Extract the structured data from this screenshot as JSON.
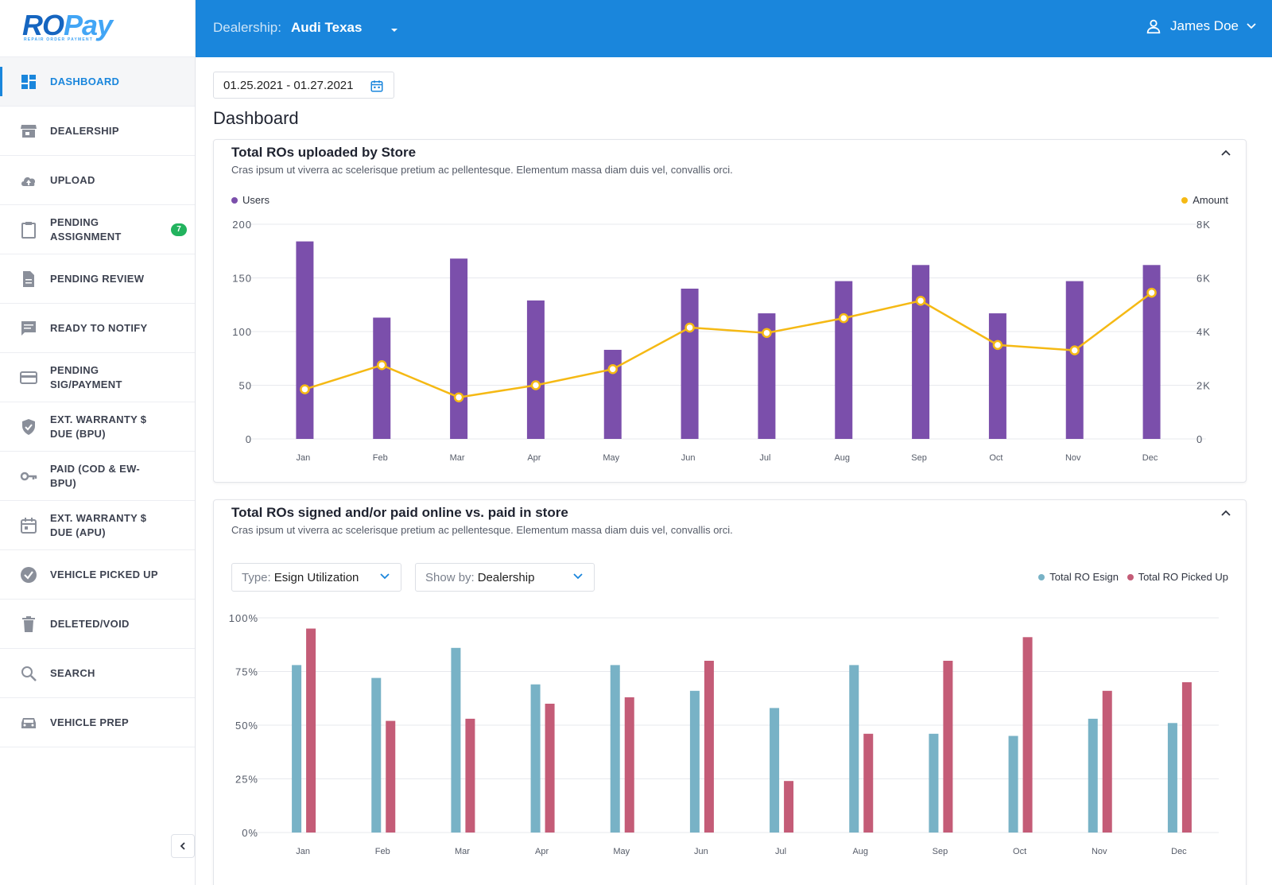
{
  "app": {
    "logo_ro": "RO",
    "logo_pay": "Pay",
    "logo_tagline": "REPAIR ORDER PAYMENT"
  },
  "header": {
    "dealership_label": "Dealership:",
    "dealership_name": "Audi Texas",
    "user_name": "James Doe"
  },
  "sidebar": {
    "items": [
      {
        "label": "DASHBOARD",
        "icon": "dashboard-icon",
        "active": true
      },
      {
        "label": "DEALERSHIP",
        "icon": "store-icon"
      },
      {
        "label": "UPLOAD",
        "icon": "cloud-upload-icon"
      },
      {
        "label": "PENDING ASSIGNMENT",
        "icon": "clipboard-icon",
        "badge": "7"
      },
      {
        "label": "PENDING REVIEW",
        "icon": "document-icon"
      },
      {
        "label": "READY TO NOTIFY",
        "icon": "message-icon"
      },
      {
        "label": "PENDING SIG/PAYMENT",
        "icon": "credit-card-icon"
      },
      {
        "label": "EXT. WARRANTY $ DUE (BPU)",
        "icon": "shield-check-icon"
      },
      {
        "label": "PAID (COD & EW-BPU)",
        "icon": "key-icon"
      },
      {
        "label": "EXT. WARRANTY $ DUE (APU)",
        "icon": "calendar-icon"
      },
      {
        "label": "VEHICLE PICKED UP",
        "icon": "check-circle-icon"
      },
      {
        "label": "DELETED/VOID",
        "icon": "trash-icon"
      },
      {
        "label": "SEARCH",
        "icon": "search-icon"
      },
      {
        "label": "VEHICLE PREP",
        "icon": "car-icon"
      }
    ]
  },
  "main": {
    "date_range": "01.25.2021 - 01.27.2021",
    "page_title": "Dashboard",
    "card1": {
      "title": "Total ROs uploaded by Store",
      "description": "Cras ipsum ut viverra ac scelerisque pretium ac pellentesque. Elementum massa diam duis vel, convallis orci."
    },
    "card2": {
      "title": "Total ROs signed and/or paid online vs. paid in store",
      "description": "Cras ipsum ut viverra ac scelerisque pretium ac pellentesque. Elementum massa diam duis vel, convallis orci.",
      "type_label": "Type:",
      "type_value": "Esign Utilization",
      "showby_label": "Show by:",
      "showby_value": "Dealership"
    }
  },
  "colors": {
    "primary": "#1a86dc",
    "users": "#7b4fab",
    "amount": "#f5b914",
    "esign": "#78b2c6",
    "pickedup": "#c45c77",
    "badge": "#22b35e"
  },
  "chart_data": [
    {
      "type": "bar",
      "categories": [
        "Jan",
        "Feb",
        "Mar",
        "Apr",
        "May",
        "Jun",
        "Jul",
        "Aug",
        "Sep",
        "Oct",
        "Nov",
        "Dec"
      ],
      "series": [
        {
          "name": "Users",
          "type": "bar",
          "axis": "left",
          "values": [
            184,
            113,
            168,
            129,
            83,
            140,
            117,
            147,
            162,
            117,
            147,
            162
          ]
        },
        {
          "name": "Amount",
          "type": "line",
          "axis": "right",
          "values": [
            1850,
            2750,
            1550,
            2000,
            2600,
            4150,
            3950,
            4500,
            5150,
            3500,
            3300,
            5450
          ]
        }
      ],
      "ylim": [
        0,
        200
      ],
      "yticks": [
        "200",
        "150",
        "100",
        "50",
        "0"
      ],
      "y2lim": [
        0,
        8000
      ],
      "y2ticks": [
        "8K",
        "6K",
        "4K",
        "2K",
        "0"
      ],
      "grid": true,
      "legend": "top"
    },
    {
      "type": "bar",
      "categories": [
        "Jan",
        "Feb",
        "Mar",
        "Apr",
        "May",
        "Jun",
        "Jul",
        "Aug",
        "Sep",
        "Oct",
        "Nov",
        "Dec"
      ],
      "series": [
        {
          "name": "Total RO Esign",
          "values": [
            78,
            72,
            86,
            69,
            78,
            66,
            58,
            78,
            46,
            45,
            53,
            51
          ]
        },
        {
          "name": "Total RO Picked Up",
          "values": [
            95,
            52,
            53,
            60,
            63,
            80,
            24,
            46,
            80,
            91,
            66,
            70
          ]
        }
      ],
      "ylim": [
        0,
        100
      ],
      "yticks": [
        "100%",
        "75%",
        "50%",
        "25%",
        "0%"
      ],
      "grid": true,
      "legend": "top-right"
    }
  ]
}
